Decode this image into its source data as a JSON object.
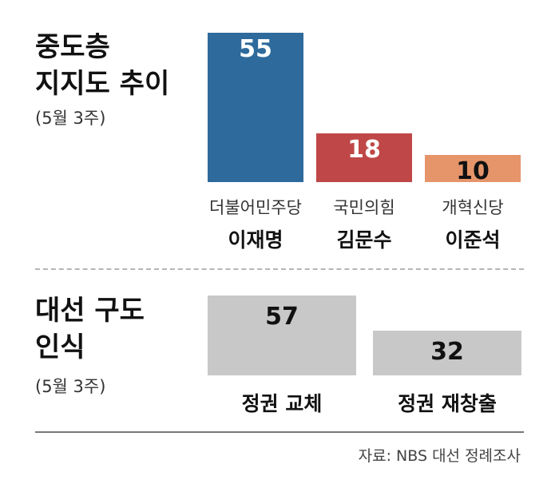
{
  "chart_data": [
    {
      "type": "bar",
      "title": "중도층\n지지도 추이",
      "subtitle": "(5월 3주)",
      "categories": [
        "더불어민주당",
        "국민의힘",
        "개혁신당"
      ],
      "candidates": [
        "이재명",
        "김문수",
        "이준석"
      ],
      "values": [
        55,
        18,
        10
      ],
      "colors": [
        "#2e6a9c",
        "#bf4747",
        "#e6956a"
      ],
      "value_label_colors": [
        "#ffffff",
        "#ffffff",
        "#111111"
      ]
    },
    {
      "type": "bar",
      "title": "대선 구도\n인식",
      "subtitle": "(5월 3주)",
      "categories": [
        "정권 교체",
        "정권 재창출"
      ],
      "values": [
        57,
        32
      ],
      "colors": [
        "#c8c8c8",
        "#c8c8c8"
      ],
      "value_label_colors": [
        "#111111",
        "#111111"
      ]
    }
  ],
  "source": "자료: NBS 대선 정례조사"
}
